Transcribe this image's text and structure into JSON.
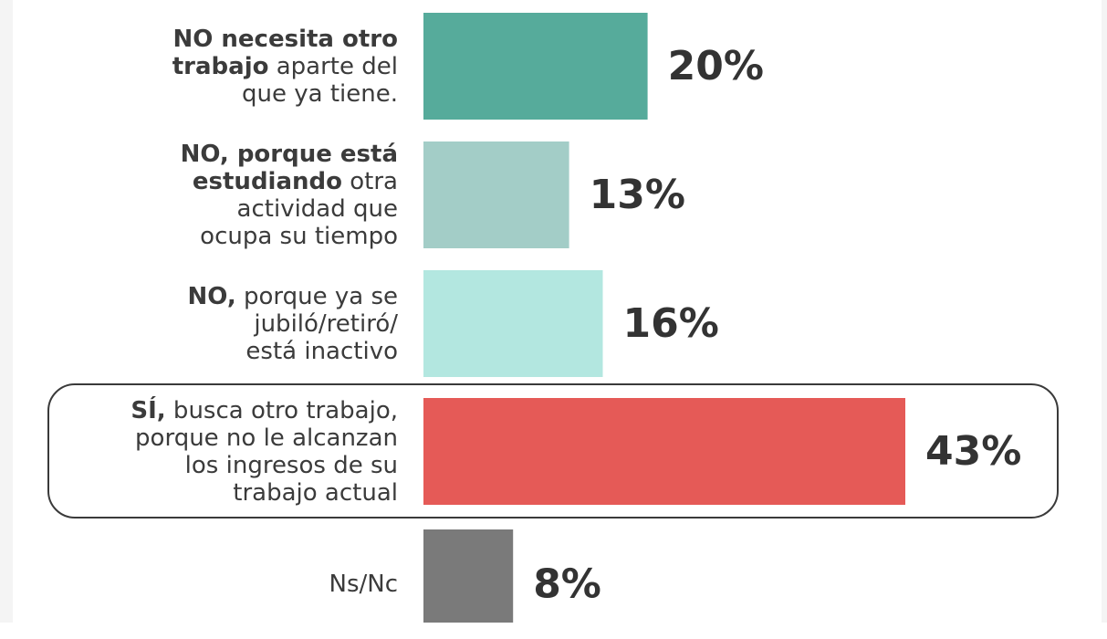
{
  "chart_data": {
    "type": "bar",
    "orientation": "horizontal",
    "value_suffix": "%",
    "categories": [
      "NO necesita otro trabajo aparte del que ya tiene.",
      "NO, porque está estudiando otra actividad que ocupa su tiempo",
      "NO, porque ya se jubiló/retiró/ está inactivo",
      "SÍ, busca otro trabajo, porque no le alcanzan los ingresos de su trabajo actual",
      "Ns/Nc"
    ],
    "label_lines": [
      [
        {
          "bold": "NO necesita otro",
          "rest": ""
        },
        {
          "bold": "trabajo",
          "rest": " aparte del"
        },
        {
          "bold": "",
          "rest": "que ya tiene."
        }
      ],
      [
        {
          "bold": "NO, porque está",
          "rest": ""
        },
        {
          "bold": "estudiando",
          "rest": " otra"
        },
        {
          "bold": "",
          "rest": "actividad que"
        },
        {
          "bold": "",
          "rest": "ocupa su tiempo"
        }
      ],
      [
        {
          "bold": "NO,",
          "rest": " porque ya se"
        },
        {
          "bold": "",
          "rest": "jubiló/retiró/"
        },
        {
          "bold": "",
          "rest": "está inactivo"
        }
      ],
      [
        {
          "bold": "SÍ,",
          "rest": " busca otro trabajo,"
        },
        {
          "bold": "",
          "rest": "porque no le alcanzan"
        },
        {
          "bold": "",
          "rest": "los ingresos de su"
        },
        {
          "bold": "",
          "rest": "trabajo actual"
        }
      ],
      [
        {
          "bold": "",
          "rest": "Ns/Nc"
        }
      ]
    ],
    "values": [
      20,
      13,
      16,
      43,
      8
    ],
    "value_labels": [
      "20%",
      "13%",
      "16%",
      "43%",
      "8%"
    ],
    "colors": [
      "#56ab9b",
      "#a3cdc7",
      "#b3e7e0",
      "#e55a57",
      "#7a7a7a"
    ],
    "highlighted_category_index": 3,
    "xlim": [
      0,
      43
    ],
    "title": "",
    "xlabel": "",
    "ylabel": "",
    "grid": false,
    "legend": "none"
  }
}
